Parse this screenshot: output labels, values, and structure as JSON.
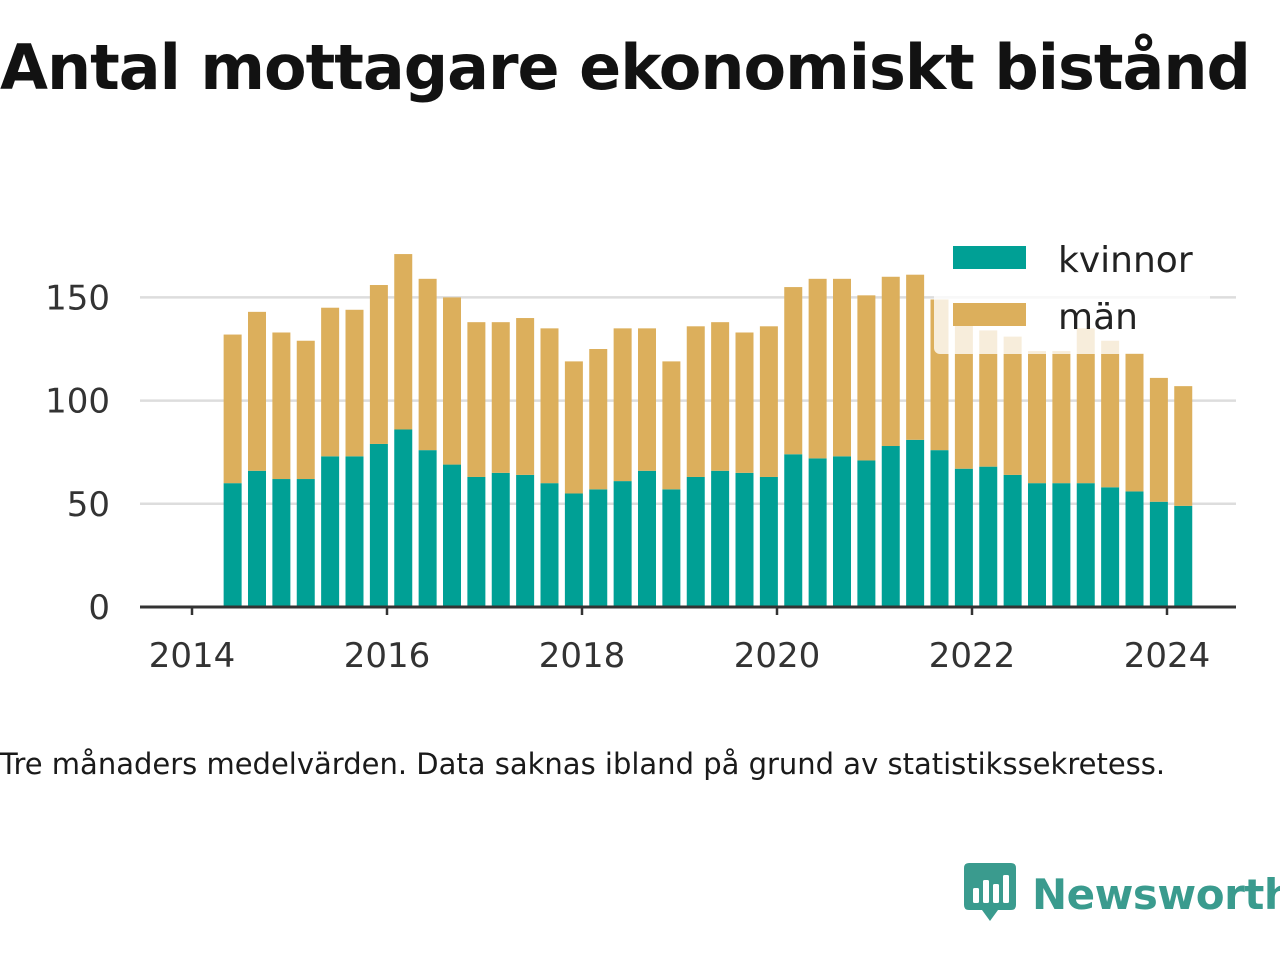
{
  "title": "Antal mottagare ekonomiskt bistånd",
  "caption": "Tre månaders medelvärden. Data saknas ibland på grund av statistikssekretess.",
  "brand": {
    "name": "Newsworthy",
    "icon": "newsworthy-logo-icon",
    "color": "#3a9b8e"
  },
  "colors": {
    "kvinnor": "#00a095",
    "man": "#dcaf5c",
    "grid": "#dddddd",
    "axis": "#333333"
  },
  "chart_data": {
    "type": "bar",
    "stacked": true,
    "x": [
      "2014-05",
      "2014-08",
      "2014-11",
      "2015-02",
      "2015-05",
      "2015-08",
      "2015-11",
      "2016-02",
      "2016-05",
      "2016-08",
      "2016-11",
      "2017-02",
      "2017-05",
      "2017-08",
      "2017-11",
      "2018-02",
      "2018-05",
      "2018-08",
      "2018-11",
      "2019-02",
      "2019-05",
      "2019-08",
      "2019-11",
      "2020-02",
      "2020-05",
      "2020-08",
      "2020-11",
      "2021-02",
      "2021-05",
      "2021-08",
      "2021-11",
      "2022-02",
      "2022-05",
      "2022-08",
      "2022-11",
      "2023-02",
      "2023-05",
      "2023-08",
      "2023-11",
      "2024-02"
    ],
    "series": [
      {
        "name": "kvinnor",
        "color": "#00a095",
        "values": [
          60,
          66,
          62,
          62,
          73,
          73,
          79,
          86,
          76,
          69,
          63,
          65,
          64,
          60,
          55,
          57,
          61,
          66,
          57,
          63,
          66,
          65,
          63,
          74,
          72,
          73,
          71,
          78,
          81,
          76,
          67,
          68,
          64,
          60,
          60,
          60,
          58,
          56,
          51,
          49
        ]
      },
      {
        "name": "män",
        "color": "#dcaf5c",
        "values": [
          72,
          77,
          71,
          67,
          72,
          71,
          77,
          85,
          83,
          81,
          75,
          73,
          76,
          75,
          64,
          68,
          74,
          69,
          62,
          73,
          72,
          68,
          73,
          81,
          87,
          86,
          80,
          82,
          80,
          73,
          70,
          66,
          67,
          64,
          64,
          75,
          71,
          67,
          60,
          58
        ]
      }
    ],
    "x_ticks": [
      "2014",
      "2016",
      "2018",
      "2020",
      "2022",
      "2024"
    ],
    "y_ticks": [
      "0",
      "50",
      "100",
      "150"
    ],
    "ylim": [
      0,
      175
    ],
    "grid": "horizontal",
    "legend_position": "top-right",
    "xlabel": "",
    "ylabel": ""
  }
}
